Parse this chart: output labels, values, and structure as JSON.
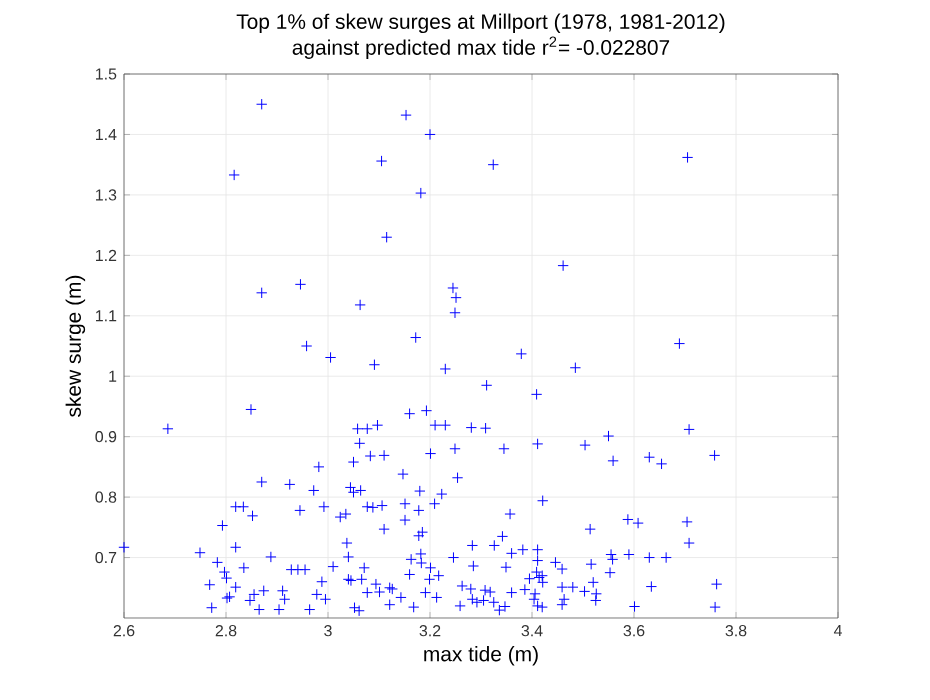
{
  "chart_data": {
    "type": "scatter",
    "title": "Top 1% of skew surges at Millport (1978, 1981-2012)",
    "subtitle": "against predicted max tide r$^{2}$= -0.022807",
    "xlabel": "max tide (m)",
    "ylabel": "skew surge (m)",
    "xlim": [
      2.6,
      4
    ],
    "ylim": [
      0.6,
      1.5
    ],
    "xticks": [
      2.6,
      2.8,
      3,
      3.2,
      3.4,
      3.6,
      3.8,
      4
    ],
    "yticks": [
      0.7,
      0.8,
      0.9,
      1,
      1.1,
      1.2,
      1.3,
      1.4,
      1.5
    ],
    "grid": true,
    "marker": "cross",
    "series": [
      {
        "color": "#0000ff",
        "x": [
          2.816,
          2.87,
          2.87,
          2.946,
          2.958,
          3.005,
          3.063,
          3.091,
          3.105,
          3.115,
          3.153,
          3.172,
          3.182,
          3.2,
          3.23,
          3.245,
          3.251,
          3.249,
          3.324,
          3.705,
          3.461,
          3.379,
          3.689,
          3.485,
          3.311,
          3.409,
          2.6,
          2.686,
          2.749,
          2.768,
          2.772,
          2.783,
          2.793,
          2.797,
          2.801,
          2.802,
          2.807,
          2.819,
          2.819,
          2.819,
          2.834,
          2.835,
          2.849,
          2.852,
          2.847,
          2.855,
          2.865,
          2.87,
          2.874,
          2.888,
          2.904,
          2.911,
          2.915,
          2.925,
          2.928,
          2.941,
          2.945,
          2.955,
          2.964,
          2.972,
          2.978,
          2.982,
          2.988,
          2.992,
          2.995,
          3.01,
          3.024,
          3.035,
          3.037,
          3.04,
          3.04,
          3.045,
          3.044,
          3.05,
          3.052,
          3.05,
          3.058,
          3.061,
          3.062,
          3.066,
          3.064,
          3.071,
          3.077,
          3.077,
          3.077,
          3.083,
          3.088,
          3.094,
          3.097,
          3.101,
          3.106,
          3.11,
          3.11,
          3.121,
          3.121,
          3.126,
          3.143,
          3.147,
          3.151,
          3.151,
          3.16,
          3.16,
          3.163,
          3.168,
          3.178,
          3.18,
          3.178,
          3.182,
          3.185,
          3.183,
          3.191,
          3.193,
          3.201,
          3.199,
          3.201,
          3.209,
          3.21,
          3.213,
          3.217,
          3.223,
          3.23,
          3.246,
          3.249,
          3.254,
          3.259,
          3.263,
          3.281,
          3.283,
          3.28,
          3.283,
          3.285,
          3.309,
          3.345,
          3.411,
          3.504,
          3.55,
          3.559,
          3.63,
          3.654,
          3.708,
          3.758,
          3.421,
          3.357,
          3.342,
          3.326,
          3.514,
          3.588,
          3.608,
          3.704,
          3.708,
          3.36,
          3.382,
          3.411,
          3.411,
          3.446,
          3.459,
          3.409,
          3.414,
          3.349,
          3.516,
          3.555,
          3.558,
          3.553,
          3.59,
          3.63,
          3.663,
          3.395,
          3.421,
          3.42,
          3.459,
          3.48,
          3.503,
          3.52,
          3.526,
          3.525,
          3.634,
          3.762,
          3.36,
          3.386,
          3.406,
          3.404,
          3.411,
          3.42,
          3.463,
          3.459,
          3.336,
          3.347,
          3.305,
          3.292,
          3.325,
          3.601,
          3.759,
          3.308,
          3.318
        ],
        "values": [
          1.333,
          1.45,
          1.138,
          1.152,
          1.05,
          1.031,
          1.118,
          1.019,
          1.356,
          1.23,
          1.432,
          1.064,
          1.303,
          1.4,
          1.012,
          1.146,
          1.13,
          1.105,
          1.35,
          1.362,
          1.183,
          1.037,
          1.054,
          1.014,
          0.985,
          0.97,
          0.717,
          0.913,
          0.708,
          0.655,
          0.617,
          0.692,
          0.753,
          0.676,
          0.666,
          0.633,
          0.635,
          0.717,
          0.651,
          0.784,
          0.784,
          0.683,
          0.945,
          0.769,
          0.629,
          0.639,
          0.614,
          0.825,
          0.645,
          0.701,
          0.614,
          0.645,
          0.631,
          0.821,
          0.68,
          0.68,
          0.778,
          0.68,
          0.614,
          0.811,
          0.639,
          0.85,
          0.66,
          0.784,
          0.631,
          0.685,
          0.767,
          0.772,
          0.724,
          0.701,
          0.664,
          0.662,
          0.816,
          0.858,
          0.617,
          0.808,
          0.913,
          0.612,
          0.889,
          0.664,
          0.811,
          0.683,
          0.913,
          0.784,
          0.642,
          0.868,
          0.783,
          0.656,
          0.919,
          0.643,
          0.786,
          0.869,
          0.747,
          0.65,
          0.622,
          0.648,
          0.634,
          0.838,
          0.789,
          0.762,
          0.938,
          0.672,
          0.697,
          0.618,
          0.778,
          0.81,
          0.736,
          0.706,
          0.742,
          0.691,
          0.642,
          0.943,
          0.872,
          0.664,
          0.683,
          0.789,
          0.919,
          0.634,
          0.67,
          0.805,
          0.919,
          0.7,
          0.88,
          0.832,
          0.62,
          0.653,
          0.915,
          0.72,
          0.648,
          0.631,
          0.686,
          0.914,
          0.88,
          0.888,
          0.886,
          0.901,
          0.86,
          0.866,
          0.855,
          0.912,
          0.869,
          0.794,
          0.772,
          0.735,
          0.72,
          0.747,
          0.763,
          0.757,
          0.759,
          0.724,
          0.707,
          0.713,
          0.713,
          0.695,
          0.692,
          0.681,
          0.676,
          0.667,
          0.684,
          0.689,
          0.705,
          0.697,
          0.675,
          0.705,
          0.7,
          0.7,
          0.665,
          0.659,
          0.67,
          0.651,
          0.651,
          0.644,
          0.659,
          0.64,
          0.629,
          0.652,
          0.656,
          0.642,
          0.647,
          0.64,
          0.631,
          0.62,
          0.618,
          0.631,
          0.622,
          0.613,
          0.619,
          0.629,
          0.626,
          0.626,
          0.619,
          0.618,
          0.646,
          0.643
        ]
      }
    ]
  }
}
